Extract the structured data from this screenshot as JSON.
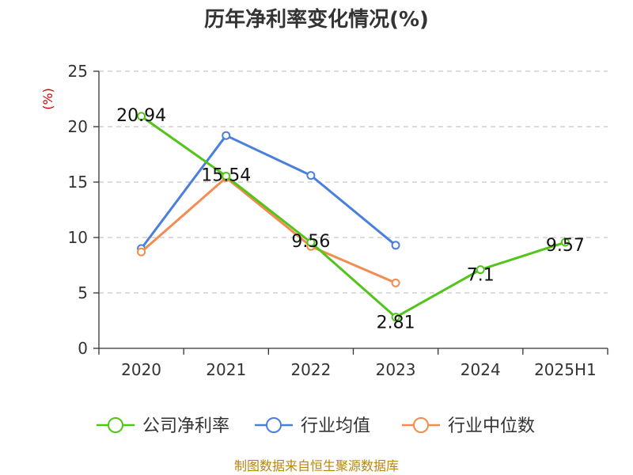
{
  "chart_data": {
    "type": "line",
    "title": "历年净利率变化情况(%)",
    "ylabel": "(%)",
    "xlabel": "",
    "ylim": [
      0,
      25
    ],
    "yticks": [
      0,
      5,
      10,
      15,
      20,
      25
    ],
    "grid": true,
    "legend_position": "bottom",
    "categories": [
      "2020",
      "2021",
      "2022",
      "2023",
      "2024",
      "2025H1"
    ],
    "series": [
      {
        "name": "公司净利率",
        "color": "#52c41a",
        "values": [
          20.94,
          15.54,
          9.56,
          2.81,
          7.1,
          9.57
        ],
        "labels": [
          "20.94",
          "15.54",
          "9.56",
          "2.81",
          "7.1",
          "9.57"
        ]
      },
      {
        "name": "行业均值",
        "color": "#4a7fdb",
        "values": [
          9.0,
          19.2,
          15.6,
          9.3,
          null,
          null
        ]
      },
      {
        "name": "行业中位数",
        "color": "#f28c50",
        "values": [
          8.7,
          15.4,
          9.2,
          5.9,
          null,
          null
        ]
      }
    ]
  },
  "source": "制图数据来自恒生聚源数据库"
}
